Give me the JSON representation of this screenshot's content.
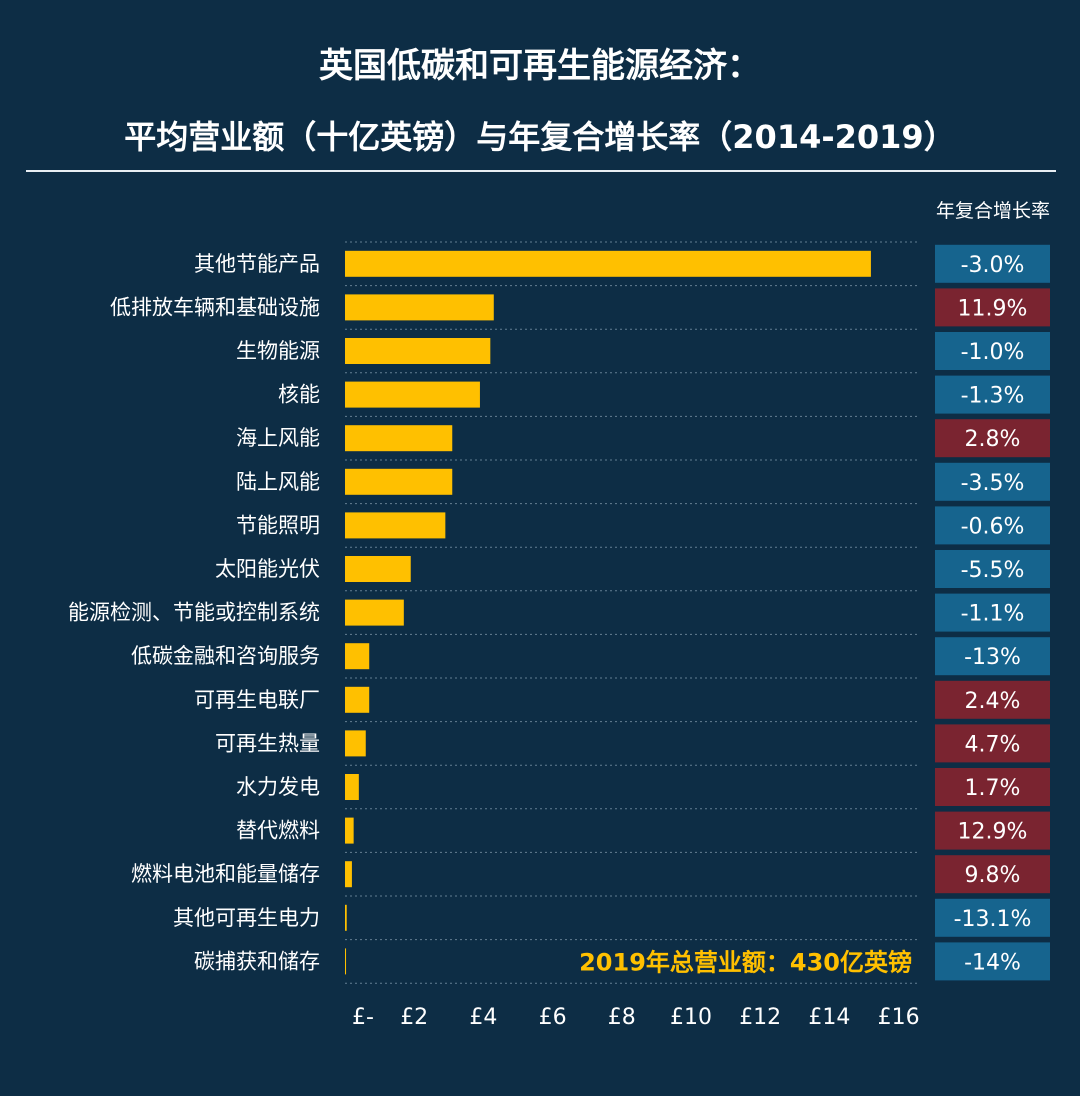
{
  "title_line1": "英国低碳和可再生能源经济：",
  "title_line2": "平均营业额（十亿英镑）与年复合增长率（2014-2019）",
  "cagr_header": "年复合增长率",
  "total_note": "2019年总营业额：430亿英镑",
  "colors": {
    "background": "#0d2d45",
    "bar": "#ffc000",
    "cagr_positive": "#7a2430",
    "cagr_negative": "#16648e"
  },
  "chart_data": {
    "type": "bar",
    "orientation": "horizontal",
    "xlim": [
      0,
      16
    ],
    "x_ticks": [
      0,
      2,
      4,
      6,
      8,
      10,
      12,
      14,
      16
    ],
    "x_tick_labels": [
      "£-",
      "£2",
      "£4",
      "£6",
      "£8",
      "£10",
      "£12",
      "£14",
      "£16"
    ],
    "categories": [
      "其他节能产品",
      "低排放车辆和基础设施",
      "生物能源",
      "核能",
      "海上风能",
      "陆上风能",
      "节能照明",
      "太阳能光伏",
      "能源检测、节能或控制系统",
      "低碳金融和咨询服务",
      "可再生电联厂",
      "可再生热量",
      "水力发电",
      "替代燃料",
      "燃料电池和能量储存",
      "其他可再生电力",
      "碳捕获和储存"
    ],
    "values": [
      15.2,
      4.3,
      4.2,
      3.9,
      3.1,
      3.1,
      2.9,
      1.9,
      1.7,
      0.7,
      0.7,
      0.6,
      0.4,
      0.25,
      0.2,
      0.05,
      0.03
    ],
    "cagr": [
      "-3.0%",
      "11.9%",
      "-1.0%",
      "-1.3%",
      "2.8%",
      "-3.5%",
      "-0.6%",
      "-5.5%",
      "-1.1%",
      "-13%",
      "2.4%",
      "4.7%",
      "1.7%",
      "12.9%",
      "9.8%",
      "-13.1%",
      "-14%"
    ],
    "cagr_sign": [
      "neg",
      "pos",
      "neg",
      "neg",
      "pos",
      "neg",
      "neg",
      "neg",
      "neg",
      "neg",
      "pos",
      "pos",
      "pos",
      "pos",
      "pos",
      "neg",
      "neg"
    ]
  }
}
